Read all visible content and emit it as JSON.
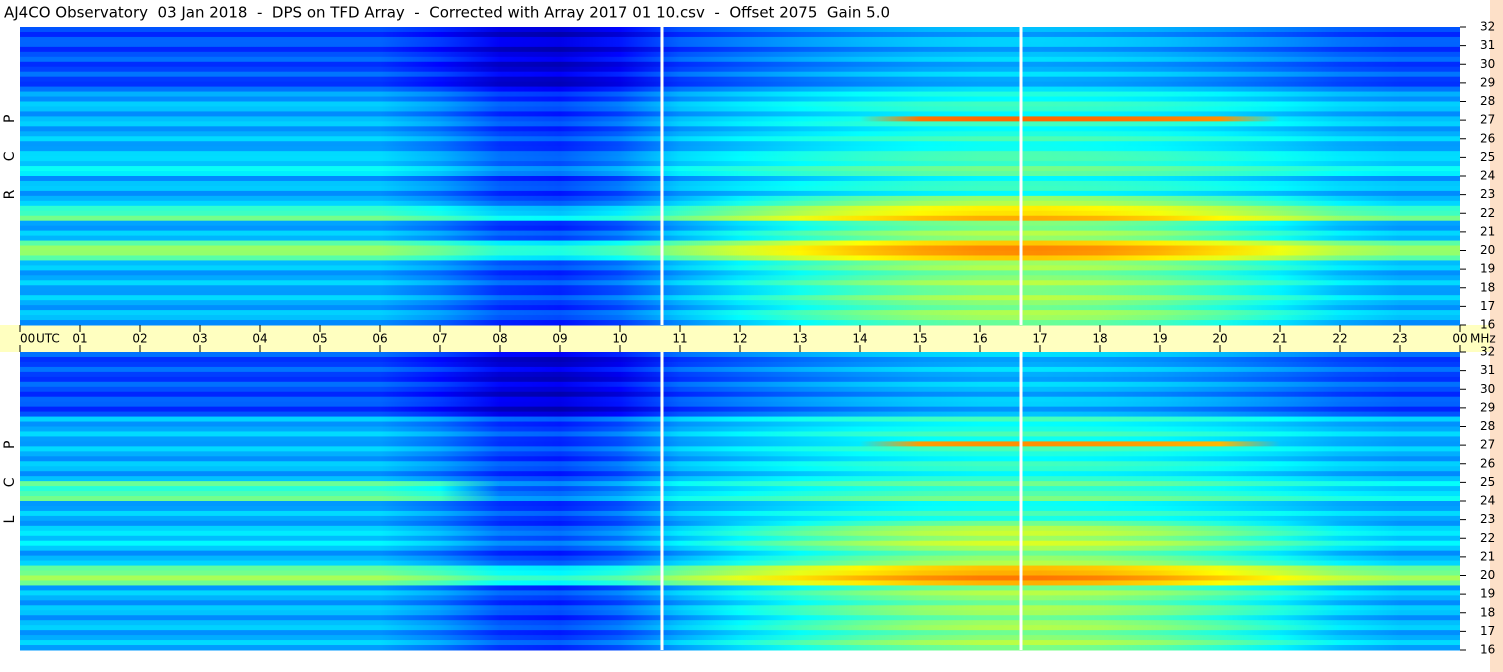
{
  "title": "AJ4CO Observatory  03 Jan 2018  -  DPS on TFD Array  -  Corrected with Array 2017 01 10.csv  -  Offset 2075  Gain 5.0",
  "time_axis": {
    "label": "UTC",
    "xlim": [
      0,
      24
    ],
    "xticks": [
      {
        "value": 0,
        "label": "00"
      },
      {
        "value": 1,
        "label": "01"
      },
      {
        "value": 2,
        "label": "02"
      },
      {
        "value": 3,
        "label": "03"
      },
      {
        "value": 4,
        "label": "04"
      },
      {
        "value": 5,
        "label": "05"
      },
      {
        "value": 6,
        "label": "06"
      },
      {
        "value": 7,
        "label": "07"
      },
      {
        "value": 8,
        "label": "08"
      },
      {
        "value": 9,
        "label": "09"
      },
      10,
      11,
      12,
      13,
      14,
      15,
      16,
      17,
      18,
      19,
      20,
      21,
      22,
      23,
      {
        "value": 24,
        "label": "00"
      }
    ]
  },
  "freq_unit": "MHz",
  "chart_data": [
    {
      "type": "heatmap",
      "ylabel": "R C P",
      "ylim": [
        16,
        32
      ],
      "yticks": [
        16,
        17,
        18,
        19,
        20,
        21,
        22,
        23,
        24,
        25,
        26,
        27,
        28,
        29,
        30,
        31,
        32
      ]
    },
    {
      "type": "heatmap",
      "ylabel": "L C P",
      "ylim": [
        16,
        32
      ],
      "yticks": [
        16,
        17,
        18,
        19,
        20,
        21,
        22,
        23,
        24,
        25,
        26,
        27,
        28,
        29,
        30,
        31,
        32
      ]
    }
  ]
}
